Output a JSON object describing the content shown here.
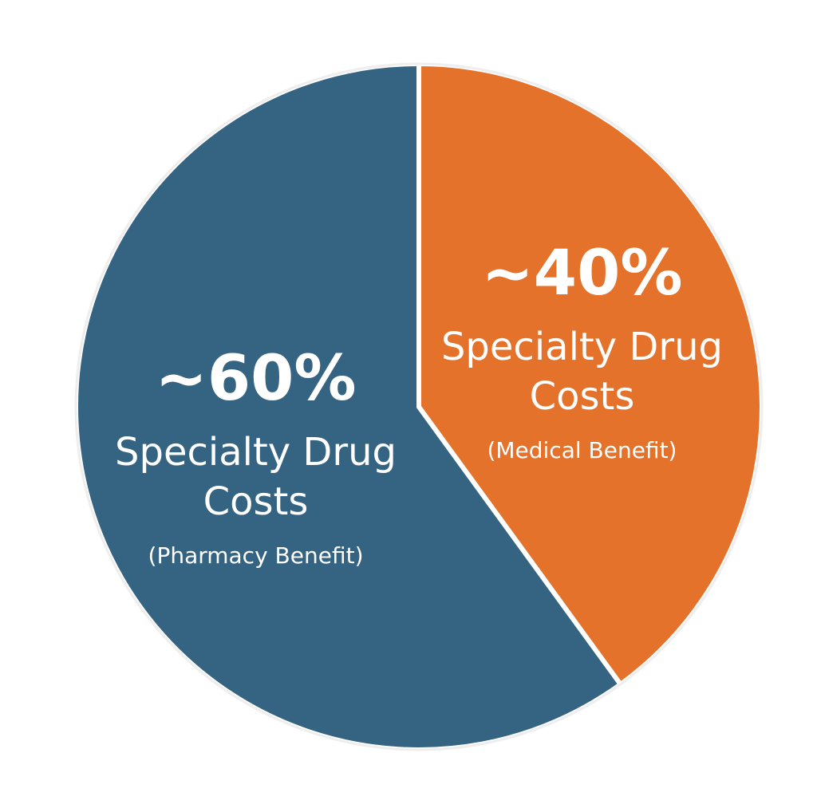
{
  "chart_data": {
    "type": "pie",
    "categories": [
      "Specialty Drug Costs",
      "Specialty Drug Costs"
    ],
    "sublabels": [
      "(Pharmacy Benefit)",
      "(Medical Benefit)"
    ],
    "values": [
      60,
      40
    ],
    "value_labels": [
      "~60%",
      "~40%"
    ],
    "colors": [
      "#356382",
      "#e4722a"
    ]
  }
}
